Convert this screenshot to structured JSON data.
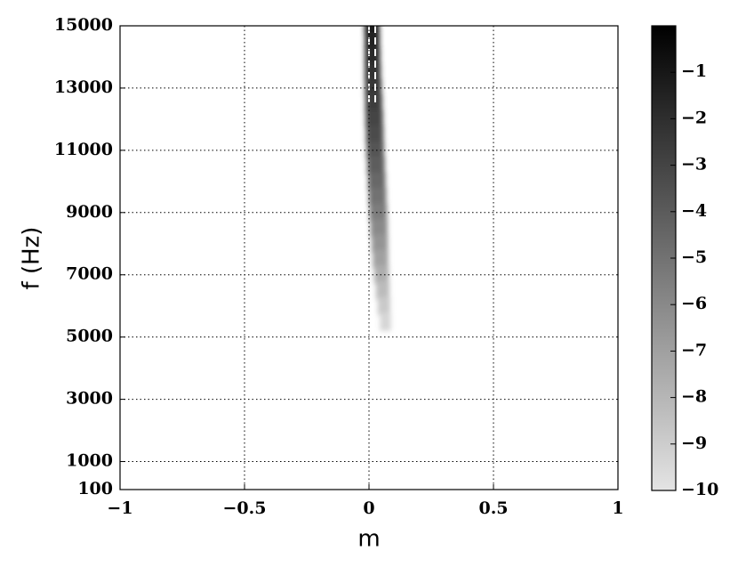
{
  "chart_data": {
    "type": "heatmap",
    "xlabel": "m",
    "ylabel": "f (Hz)",
    "xlim": [
      -1,
      1
    ],
    "xticks": [
      {
        "value": -1,
        "label": "−1"
      },
      {
        "value": -0.5,
        "label": "−0.5"
      },
      0,
      0.5,
      1
    ],
    "ylim": [
      100,
      15000
    ],
    "yticks": [
      100,
      1000,
      3000,
      5000,
      7000,
      9000,
      11000,
      13000,
      15000
    ],
    "grid": true,
    "clim": [
      -10,
      0
    ],
    "cticks": [
      {
        "value": -1,
        "label": "−1"
      },
      {
        "value": -2,
        "label": "−2"
      },
      {
        "value": -3,
        "label": "−3"
      },
      {
        "value": -4,
        "label": "−4"
      },
      {
        "value": -5,
        "label": "−5"
      },
      {
        "value": -6,
        "label": "−6"
      },
      {
        "value": -7,
        "label": "−7"
      },
      {
        "value": -8,
        "label": "−8"
      },
      {
        "value": -9,
        "label": "−9"
      },
      {
        "value": -10,
        "label": "−10"
      }
    ],
    "y": [
      15000,
      14500,
      14000,
      13500,
      13000,
      12500,
      12000,
      11500,
      11000,
      10500,
      10000,
      9500,
      9000,
      8500,
      8000,
      7500,
      7000,
      6500,
      6000,
      5500
    ],
    "x": [
      0.012,
      0.013,
      0.014,
      0.015,
      0.017,
      0.019,
      0.021,
      0.023,
      0.025,
      0.028,
      0.031,
      0.034,
      0.037,
      0.04,
      0.043,
      0.046,
      0.05,
      0.055,
      0.06,
      0.066
    ],
    "widths": [
      0.06,
      0.06,
      0.062,
      0.064,
      0.066,
      0.068,
      0.07,
      0.07,
      0.07,
      0.07,
      0.07,
      0.07,
      0.07,
      0.068,
      0.065,
      0.062,
      0.058,
      0.054,
      0.05,
      0.044
    ],
    "values": [
      -1.2,
      -1.5,
      -1.8,
      -2.1,
      -2.4,
      -2.7,
      -3.0,
      -3.3,
      -3.7,
      -4.1,
      -4.5,
      -5.0,
      -5.5,
      -6.0,
      -6.5,
      -7.0,
      -7.6,
      -8.2,
      -8.8,
      -9.4
    ],
    "contours": [
      {
        "x": [
          0,
          0
        ],
        "y": [
          15000,
          12400
        ]
      },
      {
        "x": [
          0.025,
          0.025
        ],
        "y": [
          15000,
          12400
        ]
      }
    ]
  }
}
